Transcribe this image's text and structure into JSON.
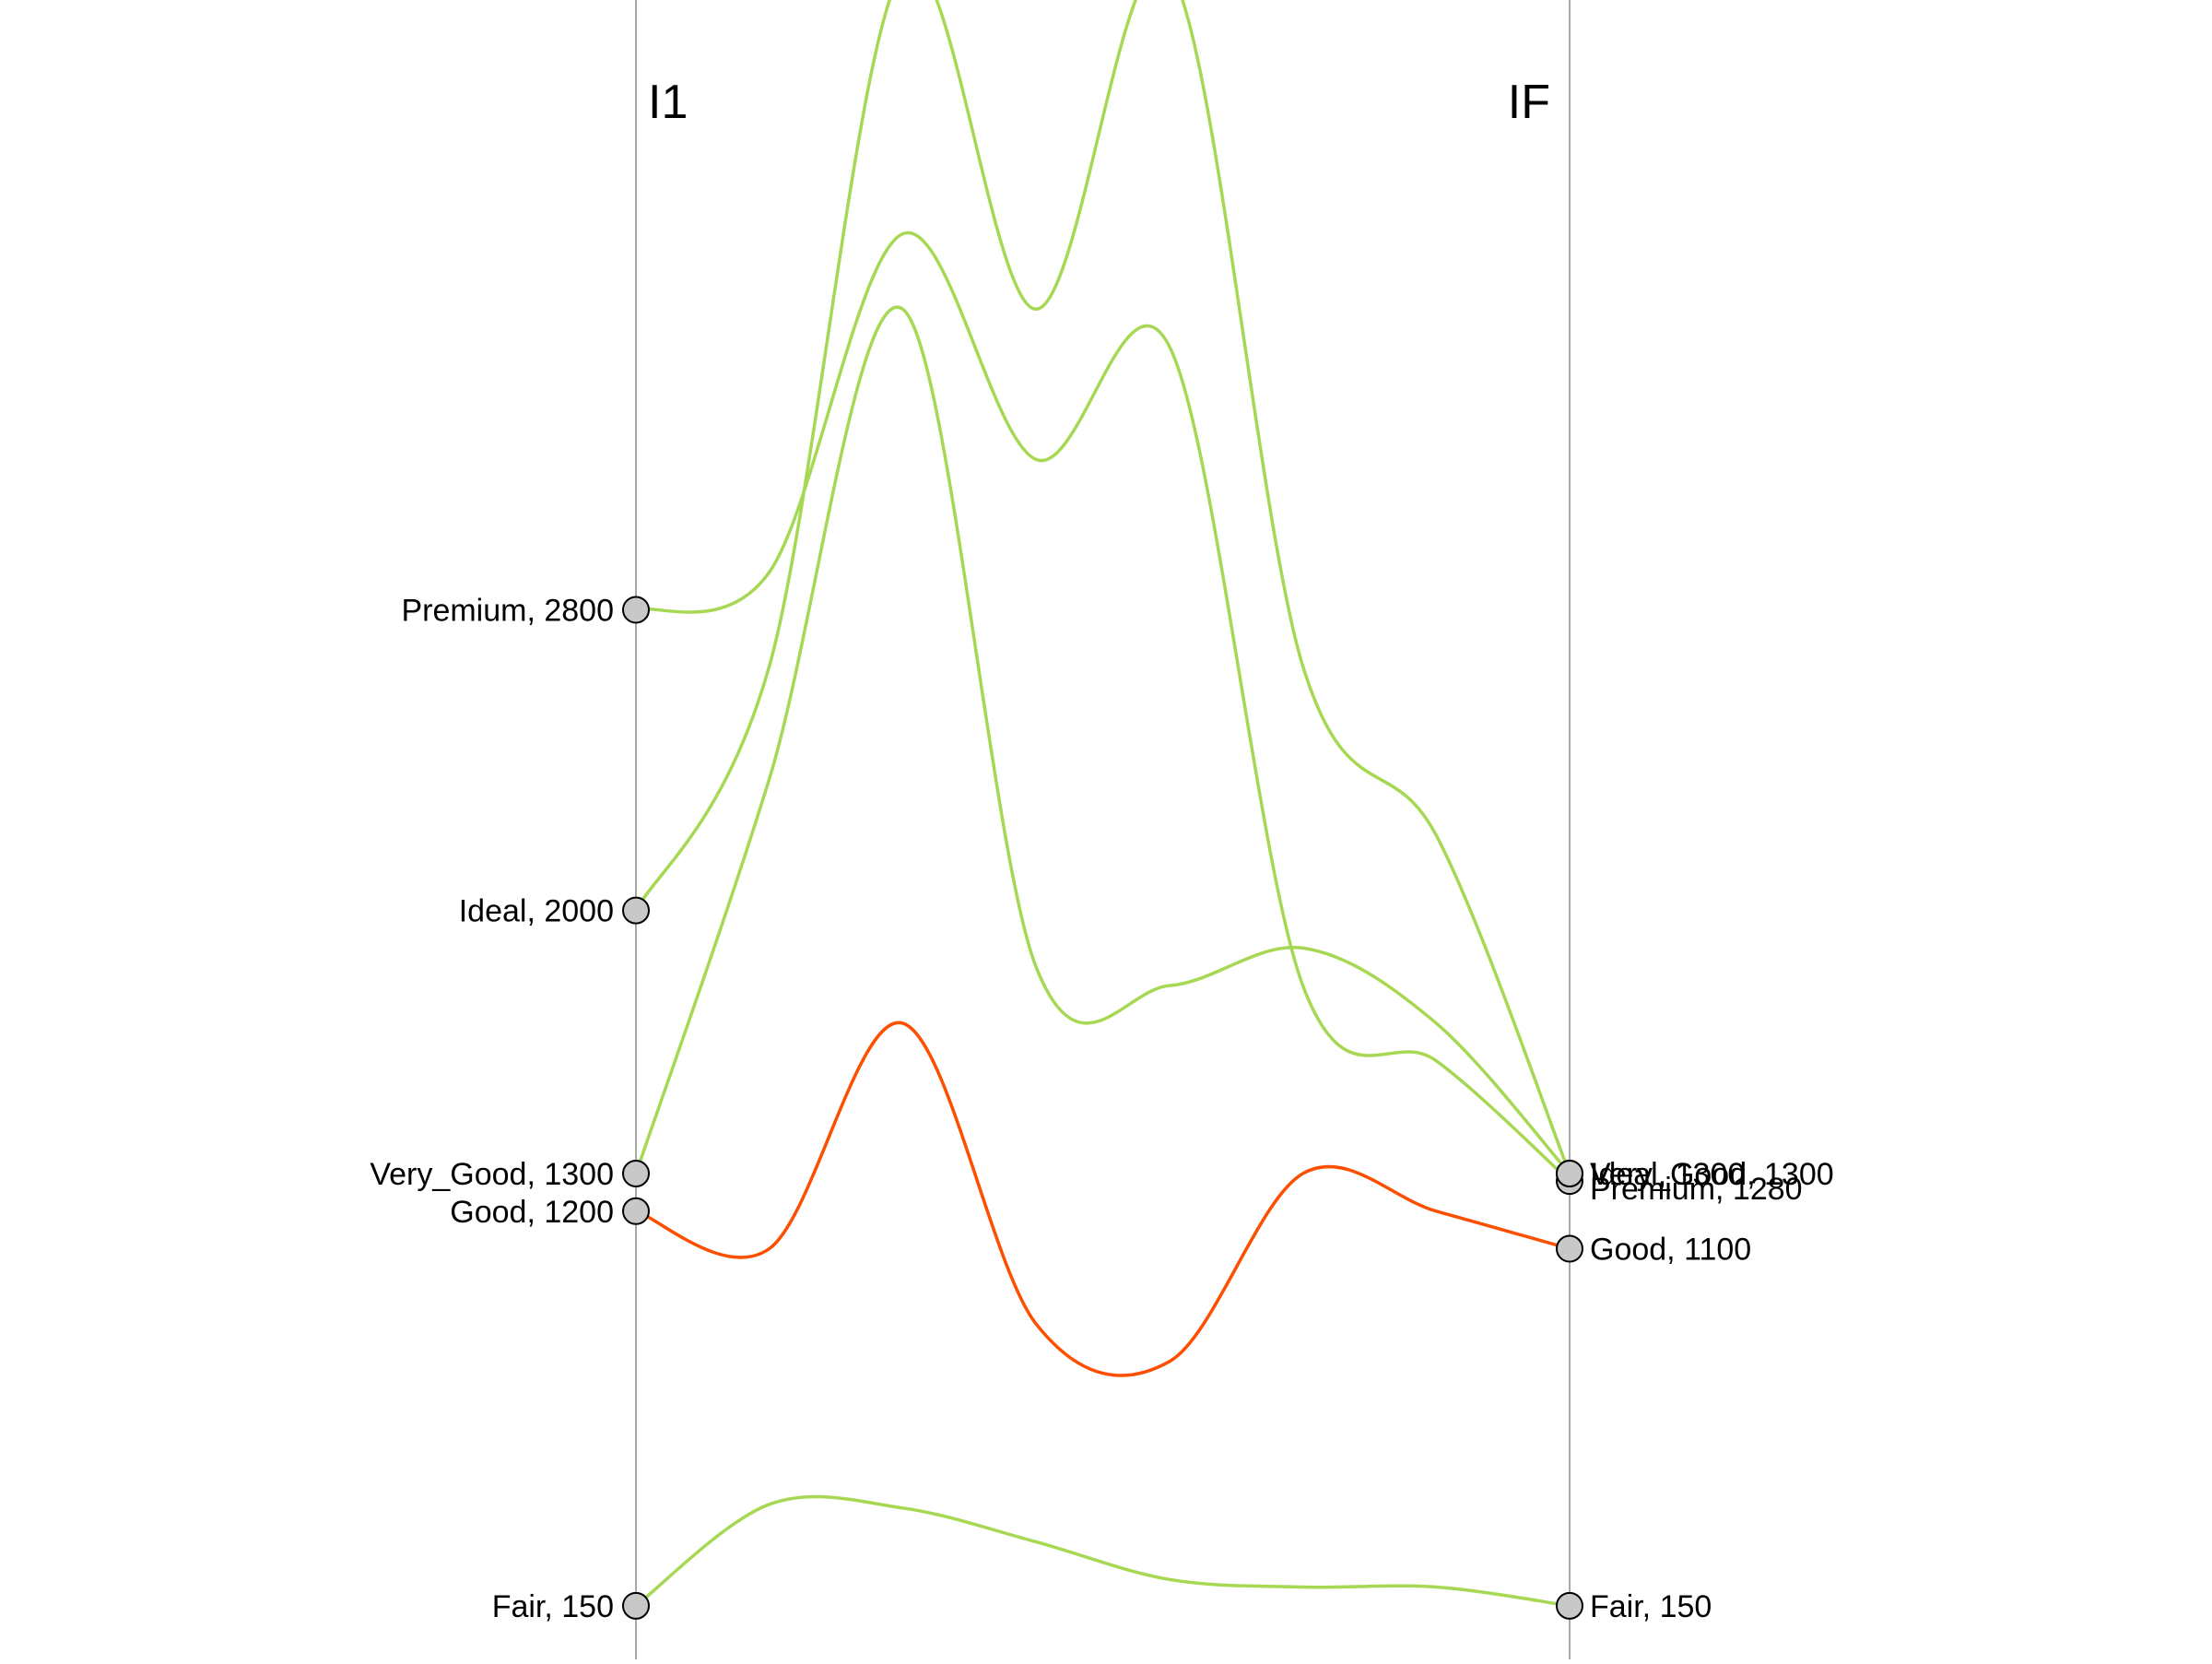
{
  "chart_data": {
    "type": "line",
    "title": "",
    "axes": [
      {
        "id": "start",
        "label": "I1"
      },
      {
        "id": "end",
        "label": "IF"
      }
    ],
    "colors": {
      "increase": "#a6d854",
      "decrease": "#fc4f00",
      "axis": "#8c8c8c",
      "dot": "#c8c8c8"
    },
    "series": [
      {
        "start_label": "Premium, 2800",
        "end_label": "Premium, 1280",
        "start": 2800,
        "end": 1280,
        "trend": "increase",
        "path_values": [
          2800,
          2900,
          3800,
          3200,
          3500,
          1800,
          1600,
          1280
        ]
      },
      {
        "start_label": "Ideal, 2000",
        "end_label": "Ideal, 1300",
        "start": 2000,
        "end": 1300,
        "trend": "increase",
        "path_values": [
          2000,
          2650,
          4500,
          3600,
          4500,
          2650,
          2200,
          1300
        ]
      },
      {
        "start_label": "Very_Good, 1300",
        "end_label": "Very_Good, 1300",
        "start": 1300,
        "end": 1300,
        "trend": "increase",
        "path_values": [
          1300,
          2350,
          3600,
          1850,
          1800,
          1900,
          1700,
          1300
        ]
      },
      {
        "start_label": "Good, 1200",
        "end_label": "Good, 1100",
        "start": 1200,
        "end": 1100,
        "trend": "decrease",
        "path_values": [
          1200,
          1100,
          1700,
          900,
          800,
          1300,
          1200,
          1100
        ]
      },
      {
        "start_label": "Fair, 150",
        "end_label": "Fair, 150",
        "start": 150,
        "end": 150,
        "trend": "increase",
        "path_values": [
          150,
          420,
          410,
          320,
          220,
          200,
          200,
          150
        ]
      }
    ]
  }
}
